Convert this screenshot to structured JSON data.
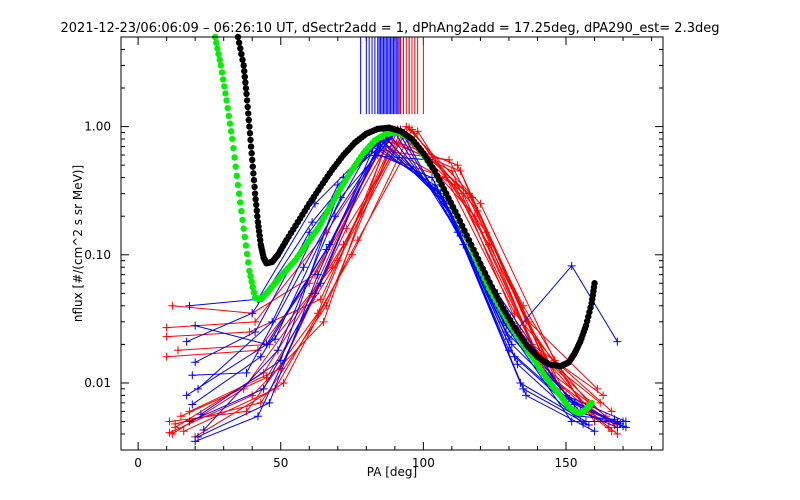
{
  "chart_data": {
    "type": "scatter",
    "title": "2021-12-23/06:06:09 – 06:26:10 UT, dSectr2add = 1, dPhAng2add = 17.25deg, dPA290_est=   2.3deg",
    "xlabel": "PA [deg]",
    "ylabel": "nflux [#/(cm^2 s sr MeV)]",
    "xlim": [
      -6,
      184
    ],
    "ylim": [
      0.003,
      5.0
    ],
    "yscale": "log",
    "x_ticks": [
      0,
      50,
      100,
      150
    ],
    "x_tick_labels": [
      "0",
      "50",
      "100",
      "150"
    ],
    "y_ticks": [
      0.01,
      0.1,
      1.0
    ],
    "y_tick_labels": [
      "0.01",
      "0.10",
      "1.00"
    ],
    "grid": false,
    "colors": {
      "red_sectors": "#ff0000",
      "blue_sectors": "#0000ff",
      "green_fit": "#00ee00",
      "black_fit": "#000000"
    },
    "vertical_markers": {
      "blue_pa": [
        78,
        80,
        81,
        82,
        83,
        84,
        84.5,
        85,
        85.5,
        86,
        86.5,
        87,
        87.5,
        88,
        88.5,
        89,
        89.5,
        90,
        90.5,
        91,
        91.5,
        92,
        93,
        95
      ],
      "red_pa": [
        91,
        92,
        93,
        94,
        95,
        96,
        97,
        98,
        100
      ]
    },
    "series": [
      {
        "color": "red",
        "marker": "plus",
        "lines": [
          {
            "x": [
              12,
              37,
              61,
              86,
              110,
              134,
              159,
              168
            ],
            "y": [
              0.004,
              0.009,
              0.05,
              0.85,
              0.45,
              0.025,
              0.006,
              0.005
            ]
          },
          {
            "x": [
              10,
              41,
              66,
              90,
              114,
              139,
              162
            ],
            "y": [
              0.027,
              0.03,
              0.15,
              0.95,
              0.3,
              0.018,
              0.007
            ]
          },
          {
            "x": [
              13,
              44,
              72,
              92,
              118,
              143,
              165
            ],
            "y": [
              0.0045,
              0.012,
              0.12,
              0.9,
              0.2,
              0.012,
              0.0045
            ]
          },
          {
            "x": [
              11,
              38,
              63,
              88,
              112,
              136,
              160
            ],
            "y": [
              0.005,
              0.006,
              0.035,
              0.8,
              0.5,
              0.03,
              0.005
            ]
          },
          {
            "x": [
              14,
              46,
              68,
              94,
              120,
              146,
              166
            ],
            "y": [
              0.018,
              0.02,
              0.08,
              1.0,
              0.25,
              0.015,
              0.006
            ]
          },
          {
            "x": [
              12,
              40,
              62,
              87,
              111,
              138,
              163
            ],
            "y": [
              0.04,
              0.035,
              0.07,
              0.7,
              0.35,
              0.02,
              0.008
            ]
          },
          {
            "x": [
              16,
              48,
              75,
              96,
              122,
              148,
              168
            ],
            "y": [
              0.0042,
              0.009,
              0.1,
              0.95,
              0.15,
              0.009,
              0.004
            ]
          },
          {
            "x": [
              10,
              42,
              60,
              84,
              108,
              132,
              158
            ],
            "y": [
              0.016,
              0.018,
              0.06,
              0.6,
              0.4,
              0.035,
              0.007
            ]
          },
          {
            "x": [
              15,
              45,
              70,
              93,
              116,
              141,
              164
            ],
            "y": [
              0.0055,
              0.011,
              0.09,
              0.85,
              0.3,
              0.014,
              0.0055
            ]
          },
          {
            "x": [
              20,
              51,
              77,
              98,
              123,
              150,
              166
            ],
            "y": [
              0.0038,
              0.01,
              0.13,
              0.92,
              0.12,
              0.008,
              0.0042
            ]
          },
          {
            "x": [
              10,
              39,
              64,
              89,
              113,
              137,
              161
            ],
            "y": [
              0.023,
              0.025,
              0.045,
              0.75,
              0.45,
              0.03,
              0.009
            ]
          },
          {
            "x": [
              13,
              43,
              66,
              91,
              117,
              142,
              167
            ],
            "y": [
              0.0048,
              0.007,
              0.04,
              0.95,
              0.28,
              0.016,
              0.0047
            ]
          },
          {
            "x": [
              18,
              50,
              73,
              95,
              119,
              145,
              165
            ],
            "y": [
              0.006,
              0.013,
              0.16,
              0.98,
              0.22,
              0.011,
              0.005
            ]
          },
          {
            "x": [
              11,
              40,
              65,
              86,
              109,
              135,
              157
            ],
            "y": [
              0.0041,
              0.008,
              0.03,
              0.65,
              0.55,
              0.04,
              0.006
            ]
          }
        ]
      },
      {
        "color": "blue",
        "marker": "plus",
        "lines": [
          {
            "x": [
              18,
              42,
              62,
              82,
              104,
              128,
              152,
              170
            ],
            "y": [
              0.04,
              0.045,
              0.25,
              0.7,
              0.35,
              0.03,
              0.005,
              0.005
            ]
          },
          {
            "x": [
              20,
              45,
              67,
              86,
              108,
              131,
              155,
              168
            ],
            "y": [
              0.028,
              0.02,
              0.12,
              0.85,
              0.25,
              0.02,
              0.006,
              0.0045
            ]
          },
          {
            "x": [
              19,
              38,
              58,
              80,
              102,
              126,
              150,
              171
            ],
            "y": [
              0.0115,
              0.012,
              0.08,
              0.6,
              0.55,
              0.05,
              0.008,
              0.005
            ]
          },
          {
            "x": [
              21,
              47,
              70,
              90,
              112,
              134,
              157
            ],
            "y": [
              0.009,
              0.03,
              0.35,
              0.9,
              0.15,
              0.01,
              0.005
            ]
          },
          {
            "x": [
              17,
              40,
              61,
              84,
              106,
              129,
              153,
              169
            ],
            "y": [
              0.021,
              0.035,
              0.18,
              0.75,
              0.3,
              0.025,
              0.007,
              0.0048
            ]
          },
          {
            "x": [
              22,
              50,
              72,
              92,
              114,
              136,
              160
            ],
            "y": [
              0.0057,
              0.015,
              0.4,
              0.95,
              0.12,
              0.008,
              0.0042
            ]
          },
          {
            "x": [
              18,
              44,
              64,
              85,
              107,
              130,
              154,
              170
            ],
            "y": [
              0.005,
              0.009,
              0.06,
              0.8,
              0.28,
              0.018,
              0.006,
              0.0046
            ]
          },
          {
            "x": [
              20,
              41,
              60,
              81,
              103,
              127,
              151,
              168
            ],
            "y": [
              0.0145,
              0.025,
              0.15,
              0.65,
              0.4,
              0.04,
              0.0075,
              0.0049
            ]
          },
          {
            "x": [
              23,
              49,
              69,
              88,
              110,
              133,
              156
            ],
            "y": [
              0.0043,
              0.018,
              0.2,
              0.88,
              0.2,
              0.014,
              0.0048
            ]
          },
          {
            "x": [
              19,
              43,
              66,
              87,
              109,
              132,
              155,
              167
            ],
            "y": [
              0.0068,
              0.016,
              0.11,
              0.82,
              0.22,
              0.016,
              0.0055,
              0.0052
            ]
          },
          {
            "x": [
              21,
              46,
              63,
              83,
              105,
              129,
              153,
              171
            ],
            "y": [
              0.0038,
              0.007,
              0.07,
              0.72,
              0.32,
              0.028,
              0.0068,
              0.0045
            ]
          },
          {
            "x": [
              17,
              48,
              71,
              91,
              113,
              135,
              158
            ],
            "y": [
              0.008,
              0.022,
              0.28,
              0.93,
              0.14,
              0.009,
              0.0047
            ]
          },
          {
            "x": [
              20,
              42,
              62,
              85,
              107,
              130,
              152,
              168
            ],
            "y": [
              0.0035,
              0.0055,
              0.05,
              0.78,
              0.26,
              0.022,
              0.082,
              0.021
            ]
          }
        ]
      },
      {
        "name": "",
        "color": "green",
        "marker": "dots",
        "x": [
          27,
          29,
          31,
          33,
          35,
          37,
          39,
          41,
          43,
          45,
          48,
          51,
          55,
          59,
          63,
          67,
          71,
          75,
          79,
          83,
          87,
          91,
          95,
          99,
          103,
          107,
          111,
          115,
          119,
          123,
          127,
          131,
          135,
          139,
          143,
          147,
          151,
          153,
          155,
          157,
          159
        ],
        "y": [
          5.0,
          3.0,
          1.6,
          0.8,
          0.35,
          0.16,
          0.075,
          0.046,
          0.045,
          0.05,
          0.06,
          0.072,
          0.09,
          0.12,
          0.16,
          0.23,
          0.33,
          0.46,
          0.62,
          0.78,
          0.88,
          0.9,
          0.82,
          0.65,
          0.48,
          0.33,
          0.22,
          0.14,
          0.085,
          0.055,
          0.038,
          0.027,
          0.02,
          0.015,
          0.011,
          0.0085,
          0.0065,
          0.006,
          0.0058,
          0.0062,
          0.007
        ]
      },
      {
        "name": "",
        "color": "black",
        "marker": "dots",
        "x": [
          35,
          37,
          38,
          39,
          40,
          41,
          42,
          43,
          44,
          45,
          47,
          49,
          52,
          56,
          60,
          64,
          68,
          72,
          76,
          80,
          84,
          88,
          92,
          96,
          100,
          104,
          108,
          112,
          116,
          120,
          124,
          128,
          132,
          136,
          140,
          144,
          148,
          151,
          153,
          155,
          157,
          159,
          160
        ],
        "y": [
          5.0,
          3.0,
          1.8,
          1.0,
          0.55,
          0.3,
          0.18,
          0.12,
          0.095,
          0.086,
          0.088,
          0.1,
          0.13,
          0.18,
          0.25,
          0.34,
          0.46,
          0.6,
          0.75,
          0.88,
          0.96,
          0.98,
          0.92,
          0.8,
          0.62,
          0.45,
          0.3,
          0.2,
          0.13,
          0.085,
          0.056,
          0.038,
          0.027,
          0.02,
          0.016,
          0.014,
          0.0135,
          0.0145,
          0.017,
          0.021,
          0.028,
          0.042,
          0.06
        ]
      }
    ]
  }
}
